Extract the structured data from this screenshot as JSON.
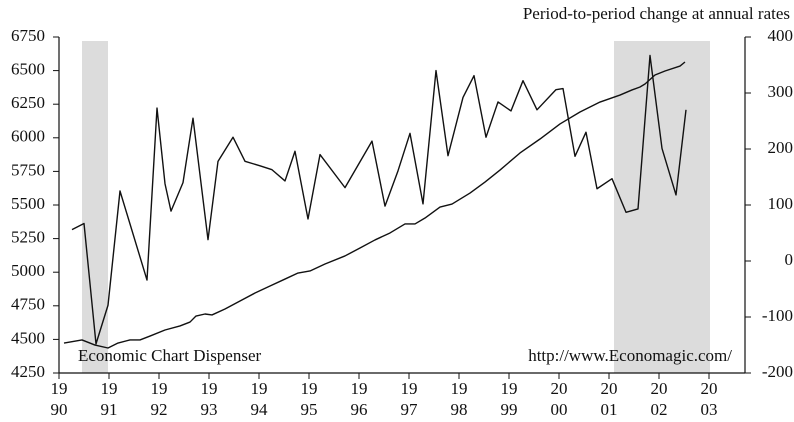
{
  "chart_data": {
    "type": "line",
    "annotations": [
      "Period-to-period change at annual rates",
      "Economic Chart Dispenser",
      "http://www.Economagic.com/"
    ],
    "xlim": [
      1990,
      2003.72
    ],
    "xticks": [
      {
        "value": 1990,
        "label": "19\n90"
      },
      {
        "value": 1991,
        "label": "19\n91"
      },
      {
        "value": 1992,
        "label": "19\n92"
      },
      {
        "value": 1993,
        "label": "19\n93"
      },
      {
        "value": 1994,
        "label": "19\n94"
      },
      {
        "value": 1995,
        "label": "19\n95"
      },
      {
        "value": 1996,
        "label": "19\n96"
      },
      {
        "value": 1997,
        "label": "19\n97"
      },
      {
        "value": 1998,
        "label": "19\n98"
      },
      {
        "value": 1999,
        "label": "19\n99"
      },
      {
        "value": 2000,
        "label": "20\n00"
      },
      {
        "value": 2001,
        "label": "20\n01"
      },
      {
        "value": 2002,
        "label": "20\n02"
      },
      {
        "value": 2003,
        "label": "20\n03"
      }
    ],
    "ylim": [
      4250,
      6750
    ],
    "yticks": [
      4250,
      4500,
      4750,
      5000,
      5250,
      5500,
      5750,
      6000,
      6250,
      6500,
      6750
    ],
    "y2lim": [
      -200,
      400
    ],
    "y2ticks": [
      -200,
      -100,
      0,
      100,
      200,
      300,
      400
    ],
    "shaded_ranges": [
      [
        1990.46,
        1990.98
      ],
      [
        2001.1,
        2003.02
      ]
    ],
    "shade_color": "#dcdcdc",
    "series": [
      {
        "color": "#111111",
        "axis": "y",
        "x": [
          1990.1,
          1990.46,
          1990.72,
          1990.98,
          1991.18,
          1991.42,
          1991.62,
          1991.82,
          1992.12,
          1992.42,
          1992.62,
          1992.74,
          1992.92,
          1993.06,
          1993.32,
          1993.62,
          1993.92,
          1994.22,
          1994.52,
          1994.78,
          1995.02,
          1995.32,
          1995.72,
          1996.02,
          1996.32,
          1996.62,
          1996.92,
          1997.12,
          1997.32,
          1997.62,
          1997.86,
          1998.22,
          1998.52,
          1998.82,
          1999.22,
          1999.62,
          2000.02,
          2000.42,
          2000.82,
          2001.22,
          2001.46,
          2001.62,
          2001.72,
          2001.92,
          2002.12,
          2002.42,
          2002.52
        ],
        "values": [
          4473,
          4496,
          4458,
          4436,
          4473,
          4496,
          4496,
          4525,
          4570,
          4600,
          4629,
          4674,
          4689,
          4682,
          4726,
          4786,
          4845,
          4897,
          4949,
          4994,
          5009,
          5061,
          5121,
          5180,
          5240,
          5292,
          5359,
          5359,
          5403,
          5485,
          5507,
          5589,
          5671,
          5760,
          5887,
          5991,
          6103,
          6192,
          6266,
          6318,
          6356,
          6378,
          6400,
          6467,
          6497,
          6534,
          6564
        ]
      },
      {
        "color": "#111111",
        "axis": "y2",
        "x": [
          1990.26,
          1990.5,
          1990.74,
          1990.98,
          1991.22,
          1991.76,
          1991.96,
          1992.12,
          1992.24,
          1992.48,
          1992.68,
          1992.98,
          1993.18,
          1993.48,
          1993.72,
          1994.02,
          1994.26,
          1994.52,
          1994.72,
          1994.98,
          1995.22,
          1995.72,
          1996.26,
          1996.52,
          1996.78,
          1997.02,
          1997.28,
          1997.54,
          1997.78,
          1998.08,
          1998.3,
          1998.54,
          1998.78,
          1999.04,
          1999.28,
          1999.56,
          1999.94,
          2000.08,
          2000.32,
          2000.54,
          2000.76,
          2001.06,
          2001.34,
          2001.58,
          2001.82,
          2002.06,
          2002.34,
          2002.54
        ],
        "values": [
          56,
          67,
          -148,
          -79,
          125,
          -34,
          273,
          138,
          89,
          140,
          255,
          38,
          178,
          221,
          178,
          170,
          163,
          143,
          196,
          75,
          190,
          131,
          214,
          98,
          161,
          228,
          102,
          340,
          188,
          292,
          331,
          221,
          284,
          268,
          322,
          270,
          306,
          308,
          187,
          230,
          129,
          147,
          87,
          93,
          367,
          201,
          118,
          270
        ]
      }
    ]
  }
}
